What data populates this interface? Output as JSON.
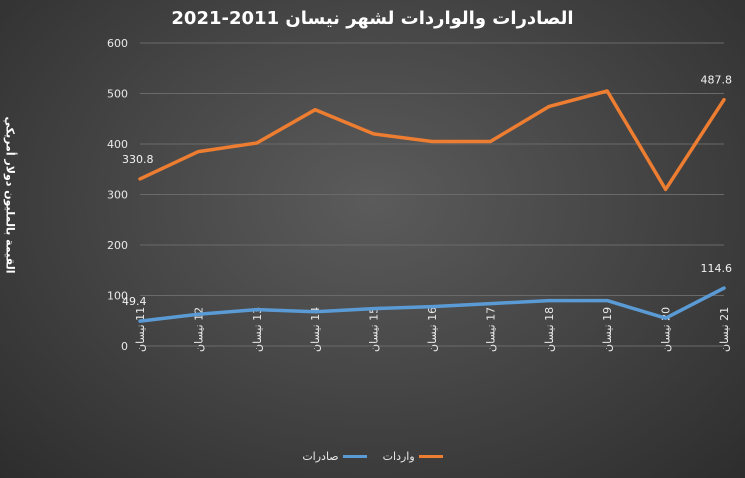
{
  "chart_data": {
    "type": "line",
    "title": "الصادرات والواردات لشهر نيسان 2011-2021",
    "ylabel": "القيمة بالمليون دولار أمريكي",
    "xlabel": "",
    "ylim": [
      0,
      600
    ],
    "yticks": [
      "0",
      "100",
      "200",
      "300",
      "400",
      "500",
      "600"
    ],
    "categories": [
      "11 نيسان",
      "12 نيسان",
      "13 نيسان",
      "14 نيسان",
      "15 نيسان",
      "16 نيسان",
      "17 نيسان",
      "18 نيسان",
      "19 نيسان",
      "20 نيسان",
      "21 نيسان"
    ],
    "grid": true,
    "legend_position": "bottom",
    "series": [
      {
        "name": "واردات",
        "color": "#ed7d31",
        "values": [
          330.8,
          385,
          402,
          468,
          420,
          405,
          405,
          474,
          505,
          310,
          487.8
        ],
        "data_labels": {
          "0": "330.8",
          "10": "487.8"
        }
      },
      {
        "name": "صادرات",
        "color": "#5b9bd5",
        "values": [
          49.4,
          63,
          72,
          68,
          74,
          78,
          84,
          90,
          90,
          55,
          114.6
        ],
        "data_labels": {
          "0": "49.4",
          "10": "114.6"
        }
      }
    ]
  }
}
